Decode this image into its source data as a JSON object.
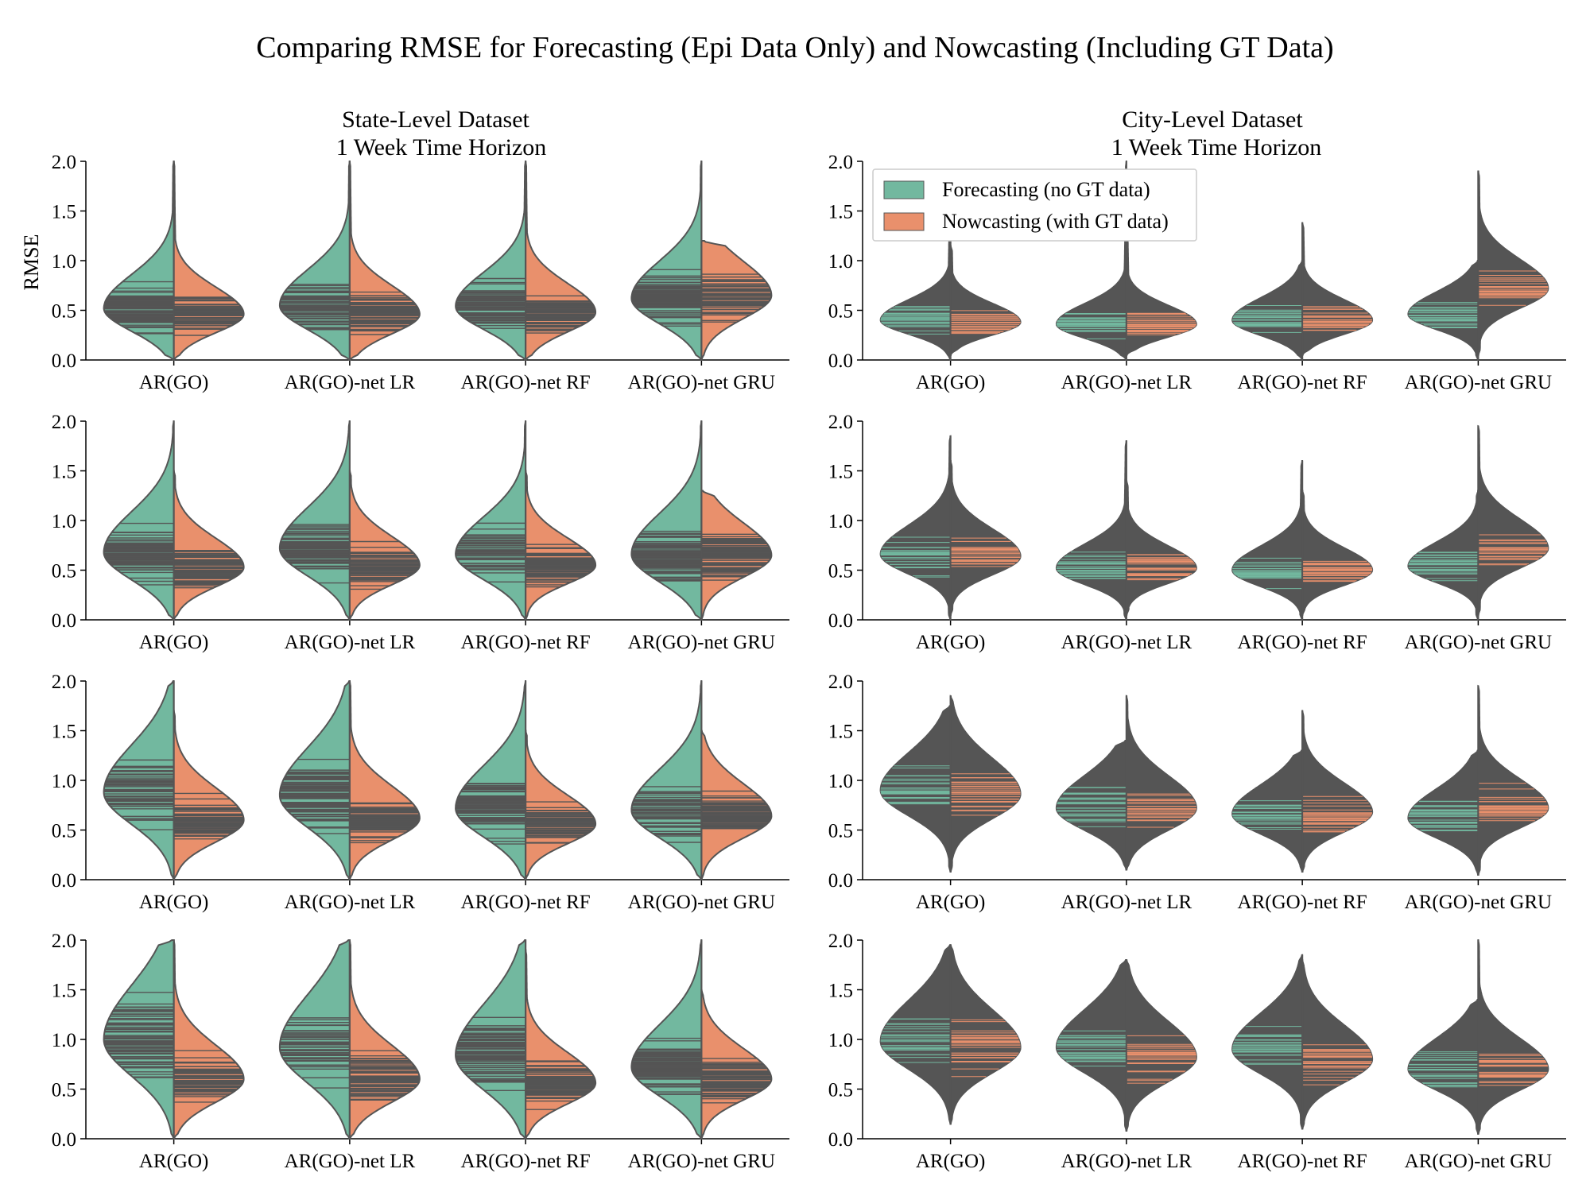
{
  "figure": {
    "title": "Comparing RMSE for Forecasting (Epi Data Only) and Nowcasting (Including GT Data)",
    "ylabel": "RMSE"
  },
  "colors": {
    "forecast": "#72b89f",
    "nowcast": "#e9906c",
    "outline": "#555555",
    "stick": "#555555",
    "stick_on_dark_forecast": "#72b89f",
    "stick_on_dark_nowcast": "#e9906c"
  },
  "legend": {
    "placement": "upper-left of top-right panel",
    "items": [
      "Forecasting (no GT data)",
      "Nowcasting (with GT data)"
    ]
  },
  "columns": [
    {
      "title_line1": "State-Level Dataset",
      "title_line2": "1 Week Time Horizon"
    },
    {
      "title_line1": "City-Level Dataset",
      "title_line2": "1 Week Time Horizon"
    }
  ],
  "chart_data": [
    {
      "type": "violin-split",
      "dataset": "state",
      "row": 0,
      "ylim": [
        0,
        2
      ],
      "yticks": [
        "0.0",
        "0.5",
        "1.0",
        "1.5",
        "2.0"
      ],
      "categories": [
        "AR(GO)",
        "AR(GO)-net LR",
        "AR(GO)-net RF",
        "AR(GO)-net GRU"
      ],
      "series": [
        {
          "name": "Forecasting (no GT data)",
          "medians": [
            0.52,
            0.55,
            0.54,
            0.62
          ],
          "spreads": [
            0.2,
            0.21,
            0.2,
            0.22
          ],
          "ranges": [
            [
              0.0,
              2.0
            ],
            [
              0.0,
              2.0
            ],
            [
              0.0,
              2.0
            ],
            [
              0.0,
              2.0
            ]
          ]
        },
        {
          "name": "Nowcasting (with GT data)",
          "medians": [
            0.46,
            0.46,
            0.48,
            0.65
          ],
          "spreads": [
            0.16,
            0.17,
            0.17,
            0.2
          ],
          "ranges": [
            [
              0.0,
              2.0
            ],
            [
              0.0,
              2.0
            ],
            [
              0.0,
              2.0
            ],
            [
              0.0,
              1.2
            ]
          ]
        }
      ]
    },
    {
      "type": "violin-split",
      "dataset": "city",
      "row": 0,
      "ylim": [
        0,
        2
      ],
      "yticks": [
        "0.0",
        "0.5",
        "1.0",
        "1.5",
        "2.0"
      ],
      "categories": [
        "AR(GO)",
        "AR(GO)-net LR",
        "AR(GO)-net RF",
        "AR(GO)-net GRU"
      ],
      "series": [
        {
          "name": "Forecasting (no GT data)",
          "medians": [
            0.4,
            0.36,
            0.4,
            0.46
          ],
          "spreads": [
            0.12,
            0.12,
            0.13,
            0.13
          ],
          "ranges": [
            [
              0.0,
              1.25
            ],
            [
              0.0,
              2.0
            ],
            [
              0.0,
              1.0
            ],
            [
              0.0,
              1.0
            ]
          ]
        },
        {
          "name": "Nowcasting (with GT data)",
          "medians": [
            0.38,
            0.36,
            0.4,
            0.72
          ],
          "spreads": [
            0.11,
            0.11,
            0.12,
            0.17
          ],
          "ranges": [
            [
              0.05,
              1.15
            ],
            [
              0.05,
              1.4
            ],
            [
              0.05,
              1.38
            ],
            [
              0.05,
              1.9
            ]
          ]
        }
      ]
    },
    {
      "type": "violin-split",
      "dataset": "state",
      "row": 1,
      "ylim": [
        0,
        2
      ],
      "yticks": [
        "0.0",
        "0.5",
        "1.0",
        "1.5",
        "2.0"
      ],
      "categories": [
        "AR(GO)",
        "AR(GO)-net LR",
        "AR(GO)-net RF",
        "AR(GO)-net GRU"
      ],
      "series": [
        {
          "name": "Forecasting (no GT data)",
          "medians": [
            0.68,
            0.72,
            0.66,
            0.66
          ],
          "spreads": [
            0.24,
            0.24,
            0.22,
            0.24
          ],
          "ranges": [
            [
              0.0,
              2.0
            ],
            [
              0.0,
              2.0
            ],
            [
              0.0,
              2.0
            ],
            [
              0.0,
              2.0
            ]
          ]
        },
        {
          "name": "Nowcasting (with GT data)",
          "medians": [
            0.53,
            0.55,
            0.55,
            0.65
          ],
          "spreads": [
            0.17,
            0.17,
            0.16,
            0.19
          ],
          "ranges": [
            [
              0.0,
              1.5
            ],
            [
              0.0,
              1.5
            ],
            [
              0.0,
              1.5
            ],
            [
              0.0,
              1.3
            ]
          ]
        }
      ]
    },
    {
      "type": "violin-split",
      "dataset": "city",
      "row": 1,
      "ylim": [
        0,
        2
      ],
      "yticks": [
        "0.0",
        "0.5",
        "1.0",
        "1.5",
        "2.0"
      ],
      "categories": [
        "AR(GO)",
        "AR(GO)-net LR",
        "AR(GO)-net RF",
        "AR(GO)-net GRU"
      ],
      "series": [
        {
          "name": "Forecasting (no GT data)",
          "medians": [
            0.66,
            0.52,
            0.5,
            0.54
          ],
          "spreads": [
            0.17,
            0.14,
            0.14,
            0.14
          ],
          "ranges": [
            [
              0.0,
              1.85
            ],
            [
              0.0,
              1.8
            ],
            [
              0.0,
              1.6
            ],
            [
              0.0,
              1.3
            ]
          ]
        },
        {
          "name": "Nowcasting (with GT data)",
          "medians": [
            0.64,
            0.52,
            0.5,
            0.72
          ],
          "spreads": [
            0.16,
            0.13,
            0.13,
            0.17
          ],
          "ranges": [
            [
              0.05,
              1.6
            ],
            [
              0.05,
              1.4
            ],
            [
              0.05,
              1.3
            ],
            [
              0.05,
              1.95
            ]
          ]
        }
      ]
    },
    {
      "type": "violin-split",
      "dataset": "state",
      "row": 2,
      "ylim": [
        0,
        2
      ],
      "yticks": [
        "0.0",
        "0.5",
        "1.0",
        "1.5",
        "2.0"
      ],
      "categories": [
        "AR(GO)",
        "AR(GO)-net LR",
        "AR(GO)-net RF",
        "AR(GO)-net GRU"
      ],
      "series": [
        {
          "name": "Forecasting (no GT data)",
          "medians": [
            0.88,
            0.85,
            0.72,
            0.7
          ],
          "spreads": [
            0.28,
            0.28,
            0.25,
            0.24
          ],
          "ranges": [
            [
              0.0,
              2.0
            ],
            [
              0.0,
              2.0
            ],
            [
              0.0,
              2.0
            ],
            [
              0.0,
              2.0
            ]
          ]
        },
        {
          "name": "Nowcasting (with GT data)",
          "medians": [
            0.6,
            0.62,
            0.56,
            0.64
          ],
          "spreads": [
            0.19,
            0.19,
            0.17,
            0.19
          ],
          "ranges": [
            [
              0.0,
              1.7
            ],
            [
              0.0,
              2.0
            ],
            [
              0.0,
              1.5
            ],
            [
              0.0,
              1.5
            ]
          ]
        }
      ]
    },
    {
      "type": "violin-split",
      "dataset": "city",
      "row": 2,
      "ylim": [
        0,
        2
      ],
      "yticks": [
        "0.0",
        "0.5",
        "1.0",
        "1.5",
        "2.0"
      ],
      "categories": [
        "AR(GO)",
        "AR(GO)-net LR",
        "AR(GO)-net RF",
        "AR(GO)-net GRU"
      ],
      "series": [
        {
          "name": "Forecasting (no GT data)",
          "medians": [
            0.9,
            0.72,
            0.66,
            0.62
          ],
          "spreads": [
            0.22,
            0.19,
            0.17,
            0.17
          ],
          "ranges": [
            [
              0.08,
              1.75
            ],
            [
              0.1,
              1.4
            ],
            [
              0.08,
              1.3
            ],
            [
              0.05,
              1.3
            ]
          ]
        },
        {
          "name": "Nowcasting (with GT data)",
          "medians": [
            0.86,
            0.72,
            0.68,
            0.72
          ],
          "spreads": [
            0.21,
            0.19,
            0.17,
            0.17
          ],
          "ranges": [
            [
              0.08,
              1.85
            ],
            [
              0.1,
              1.85
            ],
            [
              0.08,
              1.7
            ],
            [
              0.05,
              1.95
            ]
          ]
        }
      ]
    },
    {
      "type": "violin-split",
      "dataset": "state",
      "row": 3,
      "ylim": [
        0,
        2
      ],
      "yticks": [
        "0.0",
        "0.5",
        "1.0",
        "1.5",
        "2.0"
      ],
      "categories": [
        "AR(GO)",
        "AR(GO)-net LR",
        "AR(GO)-net RF",
        "AR(GO)-net GRU"
      ],
      "series": [
        {
          "name": "Forecasting (no GT data)",
          "medians": [
            1.0,
            0.92,
            0.84,
            0.72
          ],
          "spreads": [
            0.32,
            0.31,
            0.3,
            0.25
          ],
          "ranges": [
            [
              0.0,
              2.0
            ],
            [
              0.0,
              2.0
            ],
            [
              0.0,
              2.0
            ],
            [
              0.0,
              2.0
            ]
          ]
        },
        {
          "name": "Nowcasting (with GT data)",
          "medians": [
            0.6,
            0.6,
            0.56,
            0.6
          ],
          "spreads": [
            0.2,
            0.2,
            0.18,
            0.18
          ],
          "ranges": [
            [
              0.0,
              2.0
            ],
            [
              0.0,
              2.0
            ],
            [
              0.0,
              1.9
            ],
            [
              0.0,
              1.5
            ]
          ]
        }
      ]
    },
    {
      "type": "violin-split",
      "dataset": "city",
      "row": 3,
      "ylim": [
        0,
        2
      ],
      "yticks": [
        "0.0",
        "0.5",
        "1.0",
        "1.5",
        "2.0"
      ],
      "categories": [
        "AR(GO)",
        "AR(GO)-net LR",
        "AR(GO)-net RF",
        "AR(GO)-net GRU"
      ],
      "series": [
        {
          "name": "Forecasting (no GT data)",
          "medians": [
            0.98,
            0.92,
            0.9,
            0.7
          ],
          "spreads": [
            0.24,
            0.22,
            0.21,
            0.18
          ],
          "ranges": [
            [
              0.15,
              1.95
            ],
            [
              0.08,
              1.8
            ],
            [
              0.1,
              1.85
            ],
            [
              0.05,
              1.4
            ]
          ]
        },
        {
          "name": "Nowcasting (with GT data)",
          "medians": [
            0.92,
            0.82,
            0.8,
            0.7
          ],
          "spreads": [
            0.22,
            0.21,
            0.2,
            0.18
          ],
          "ranges": [
            [
              0.15,
              1.95
            ],
            [
              0.08,
              1.8
            ],
            [
              0.1,
              1.8
            ],
            [
              0.05,
              2.0
            ]
          ]
        }
      ]
    }
  ]
}
